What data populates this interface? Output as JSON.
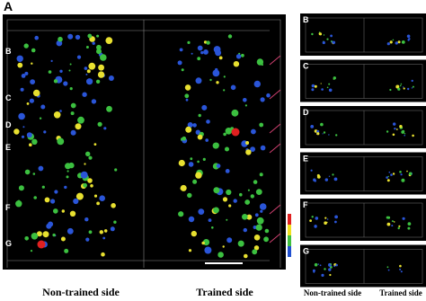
{
  "figure_label": "A",
  "main_panel": {
    "row_labels": [
      "B",
      "C",
      "D",
      "E",
      "F",
      "G"
    ],
    "sides": [
      "Non-trained side",
      "Trained side"
    ]
  },
  "small_panels": [
    {
      "label": "B"
    },
    {
      "label": "C"
    },
    {
      "label": "D"
    },
    {
      "label": "E"
    },
    {
      "label": "F"
    },
    {
      "label": "G"
    }
  ],
  "small_sides": [
    "Non-trained side",
    "Trained side"
  ]
}
